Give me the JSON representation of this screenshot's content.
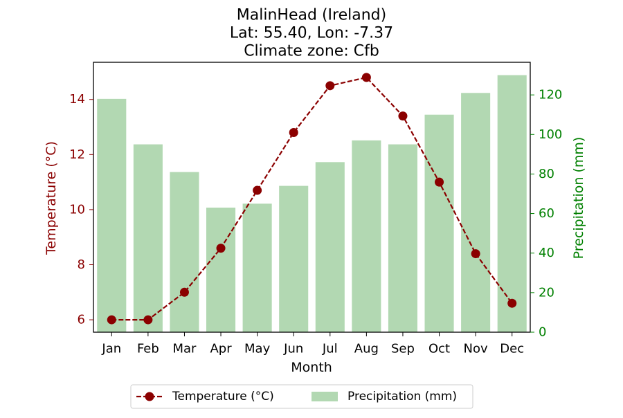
{
  "chart_data": {
    "type": "bar",
    "title_lines": [
      "MalinHead (Ireland)",
      "Lat: 55.40, Lon: -7.37",
      "Climate zone: Cfb"
    ],
    "xlabel": "Month",
    "categories": [
      "Jan",
      "Feb",
      "Mar",
      "Apr",
      "May",
      "Jun",
      "Jul",
      "Aug",
      "Sep",
      "Oct",
      "Nov",
      "Dec"
    ],
    "series": [
      {
        "name": "Temperature (°C)",
        "type": "line",
        "axis": "left",
        "values": [
          6.0,
          6.0,
          7.0,
          8.6,
          10.7,
          12.8,
          14.5,
          14.8,
          13.4,
          11.0,
          8.4,
          6.6
        ],
        "color": "#8b0000",
        "line_style": "dashed",
        "marker": "circle"
      },
      {
        "name": "Precipitation (mm)",
        "type": "bar",
        "axis": "right",
        "values": [
          118,
          95,
          81,
          63,
          65,
          74,
          86,
          97,
          95,
          110,
          121,
          130
        ],
        "color": "#b2d8b2"
      }
    ],
    "y_left": {
      "label": "Temperature (°C)",
      "range": [
        5.55,
        15.35
      ],
      "ticks": [
        6,
        8,
        10,
        12,
        14
      ],
      "color": "#8b0000"
    },
    "y_right": {
      "label": "Precipitation (mm)",
      "range": [
        0,
        136.5
      ],
      "ticks": [
        0,
        20,
        40,
        60,
        80,
        100,
        120
      ],
      "color": "#008000"
    },
    "grid": false,
    "legend_position": "bottom-center"
  }
}
